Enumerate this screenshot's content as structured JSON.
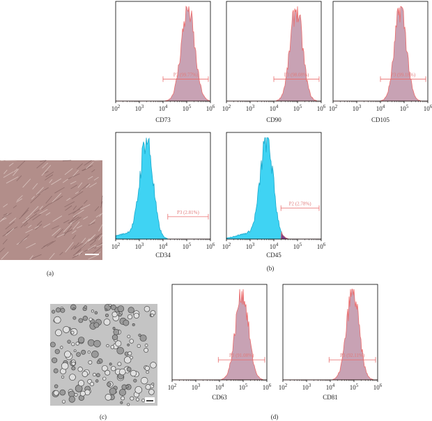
{
  "axis_ticks": [
    {
      "base": "10",
      "exp": "2"
    },
    {
      "base": "10",
      "exp": "3"
    },
    {
      "base": "10",
      "exp": "4"
    },
    {
      "base": "10",
      "exp": "5"
    },
    {
      "base": "10",
      "exp": "6"
    }
  ],
  "panel_a": {
    "label": "(a)"
  },
  "panel_b": {
    "label": "(b)",
    "plots": [
      {
        "marker": "CD73",
        "gate": "P3 (99.77%)"
      },
      {
        "marker": "CD90",
        "gate": "P3 (98.08%)"
      },
      {
        "marker": "CD105",
        "gate": "P3 (99.18%)"
      },
      {
        "marker": "CD34",
        "gate": "P3 (2.81%)"
      },
      {
        "marker": "CD45",
        "gate": "P2 (2.78%)"
      }
    ]
  },
  "panel_c": {
    "label": "(c)"
  },
  "panel_d": {
    "label": "(d)",
    "plots": [
      {
        "marker": "CD63",
        "gate": "P3 (91.08%)"
      },
      {
        "marker": "CD81",
        "gate": "P3 (92.11%)"
      }
    ]
  }
}
